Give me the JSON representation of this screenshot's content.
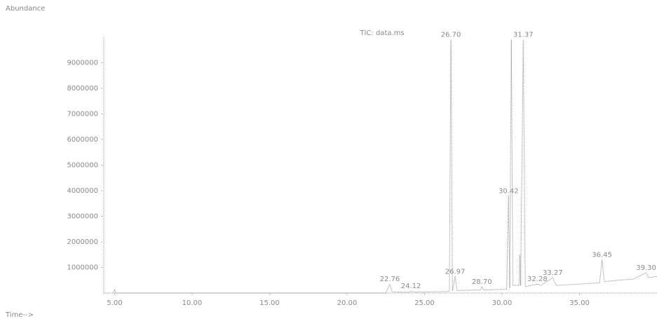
{
  "chart_data": {
    "type": "line",
    "title": "TIC: data.ms",
    "ylabel": "Abundance",
    "xlabel": "Time-->",
    "color": "#8a8a8a",
    "x": [
      4.3,
      4.9,
      5.0,
      5.1,
      22.5,
      22.76,
      22.9,
      24.0,
      24.12,
      24.3,
      26.6,
      26.7,
      26.8,
      26.97,
      27.1,
      28.6,
      28.7,
      28.8,
      30.3,
      30.42,
      30.5,
      30.6,
      30.7,
      31.1,
      31.15,
      31.2,
      31.37,
      31.5,
      32.28,
      32.5,
      33.27,
      33.5,
      35.0,
      36.3,
      36.45,
      36.6,
      37.5,
      38.5,
      39.3,
      39.45,
      40.0
    ],
    "values": [
      0,
      0,
      120000,
      0,
      0,
      350000,
      50000,
      30000,
      80000,
      40000,
      60000,
      9900000,
      80000,
      650000,
      100000,
      120000,
      250000,
      120000,
      150000,
      3800000,
      200000,
      9900000,
      300000,
      300000,
      1500000,
      300000,
      9900000,
      250000,
      350000,
      300000,
      600000,
      300000,
      350000,
      400000,
      1300000,
      450000,
      500000,
      550000,
      800000,
      600000,
      650000
    ],
    "peak_labels": [
      {
        "value": 22.76,
        "label": "22.76"
      },
      {
        "value": 24.12,
        "label": "24.12"
      },
      {
        "value": 26.7,
        "label": "26.70"
      },
      {
        "value": 26.97,
        "label": "26.97"
      },
      {
        "value": 28.7,
        "label": "28.70"
      },
      {
        "value": 30.42,
        "label": "30.42"
      },
      {
        "value": 31.37,
        "label": "31.37"
      },
      {
        "value": 32.28,
        "label": "32.28"
      },
      {
        "value": 33.27,
        "label": "33.27"
      },
      {
        "value": 36.45,
        "label": "36.45"
      },
      {
        "value": 39.3,
        "label": "39.30"
      }
    ],
    "xlim": [
      4.3,
      40.0
    ],
    "ylim": [
      0,
      10000000
    ],
    "xticks": [
      {
        "value": 5,
        "label": "5.00"
      },
      {
        "value": 10,
        "label": "10.00"
      },
      {
        "value": 15,
        "label": "15.00"
      },
      {
        "value": 20,
        "label": "20.00"
      },
      {
        "value": 25,
        "label": "25.00"
      },
      {
        "value": 30,
        "label": "30.00"
      },
      {
        "value": 35,
        "label": "35.00"
      }
    ],
    "yticks": [
      1000000,
      2000000,
      3000000,
      4000000,
      5000000,
      6000000,
      7000000,
      8000000,
      9000000
    ]
  }
}
